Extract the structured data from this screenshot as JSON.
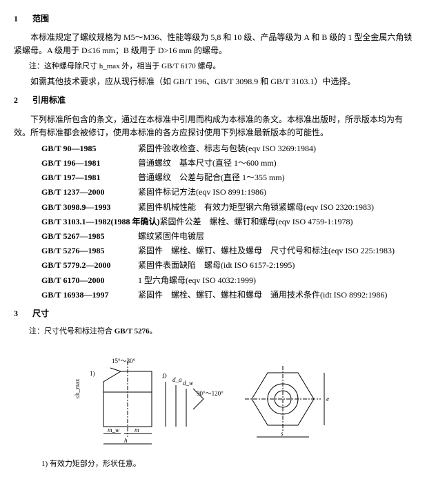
{
  "section1": {
    "num": "1",
    "title": "范围",
    "para": "本标准规定了螺纹规格为 M5～M36、性能等级为 5,8 和 10 级、产品等级为 A 和 B 级的 1 型全金属六角锁紧螺母。A 级用于 D≤16 mm；B 级用于 D>16 mm 的螺母。",
    "note1": "注：这种螺母除尺寸 h_max 外，相当于 GB/T 6170 螺母。",
    "note2": "如需其他技术要求，应从现行标准（如 GB/T 196、GB/T 3098.9 和 GB/T 3103.1）中选择。"
  },
  "section2": {
    "num": "2",
    "title": "引用标准",
    "para": "下列标准所包含的条文，通过在本标准中引用而构成为本标准的条文。本标准出版时，所示版本均为有效。所有标准都会被修订，使用本标准的各方应探讨使用下列标准最新版本的可能性。",
    "refs": [
      {
        "code": "GB/T 90—1985",
        "desc": "紧固件验收检查、标志与包装(eqv ISO 3269:1984)"
      },
      {
        "code": "GB/T 196—1981",
        "desc": "普通螺纹　基本尺寸(直径 1～600 mm)"
      },
      {
        "code": "GB/T 197—1981",
        "desc": "普通螺纹　公差与配合(直径 1～355 mm)"
      },
      {
        "code": "GB/T 1237—2000",
        "desc": "紧固件标记方法(eqv ISO 8991:1986)"
      },
      {
        "code": "GB/T 3098.9—1993",
        "desc": "紧固件机械性能　有效力矩型钢六角锁紧螺母(eqv ISO 2320:1983)"
      },
      {
        "code": "GB/T 3103.1—1982(1988 年确认)",
        "desc": "紧固件公差　螺栓、螺钉和螺母(eqv ISO 4759-1:1978)"
      },
      {
        "code": "GB/T 5267—1985",
        "desc": "螺纹紧固件电镀层"
      },
      {
        "code": "GB/T 5276—1985",
        "desc": "紧固件　螺栓、螺钉、螺柱及螺母　尺寸代号和标注(eqv ISO 225:1983)"
      },
      {
        "code": "GB/T 5779.2—2000",
        "desc": "紧固件表面缺陷　螺母(idt ISO 6157-2:1995)"
      },
      {
        "code": "GB/T 6170—2000",
        "desc": "1 型六角螺母(eqv ISO 4032:1999)"
      },
      {
        "code": "GB/T 16938—1997",
        "desc": "紧固件　螺栓、螺钉、螺柱和螺母　通用技术条件(idt ISO 8992:1986)"
      }
    ]
  },
  "section3": {
    "num": "3",
    "title": "尺寸",
    "note": "注：尺寸代号和标注符合 GB/T 5276。",
    "footer": "1) 有效力矩部分，形状任意。",
    "diagram": {
      "angle1": "15°～30°",
      "angle2": "90°～120°",
      "label_D": "D",
      "label_da": "d_a",
      "label_dw": "d_w",
      "label_mw": "m_w",
      "label_h": "h",
      "label_m": "m",
      "label_hmax": "≤h_max",
      "label_1": "1)",
      "label_s": "s",
      "label_e": "e"
    }
  }
}
